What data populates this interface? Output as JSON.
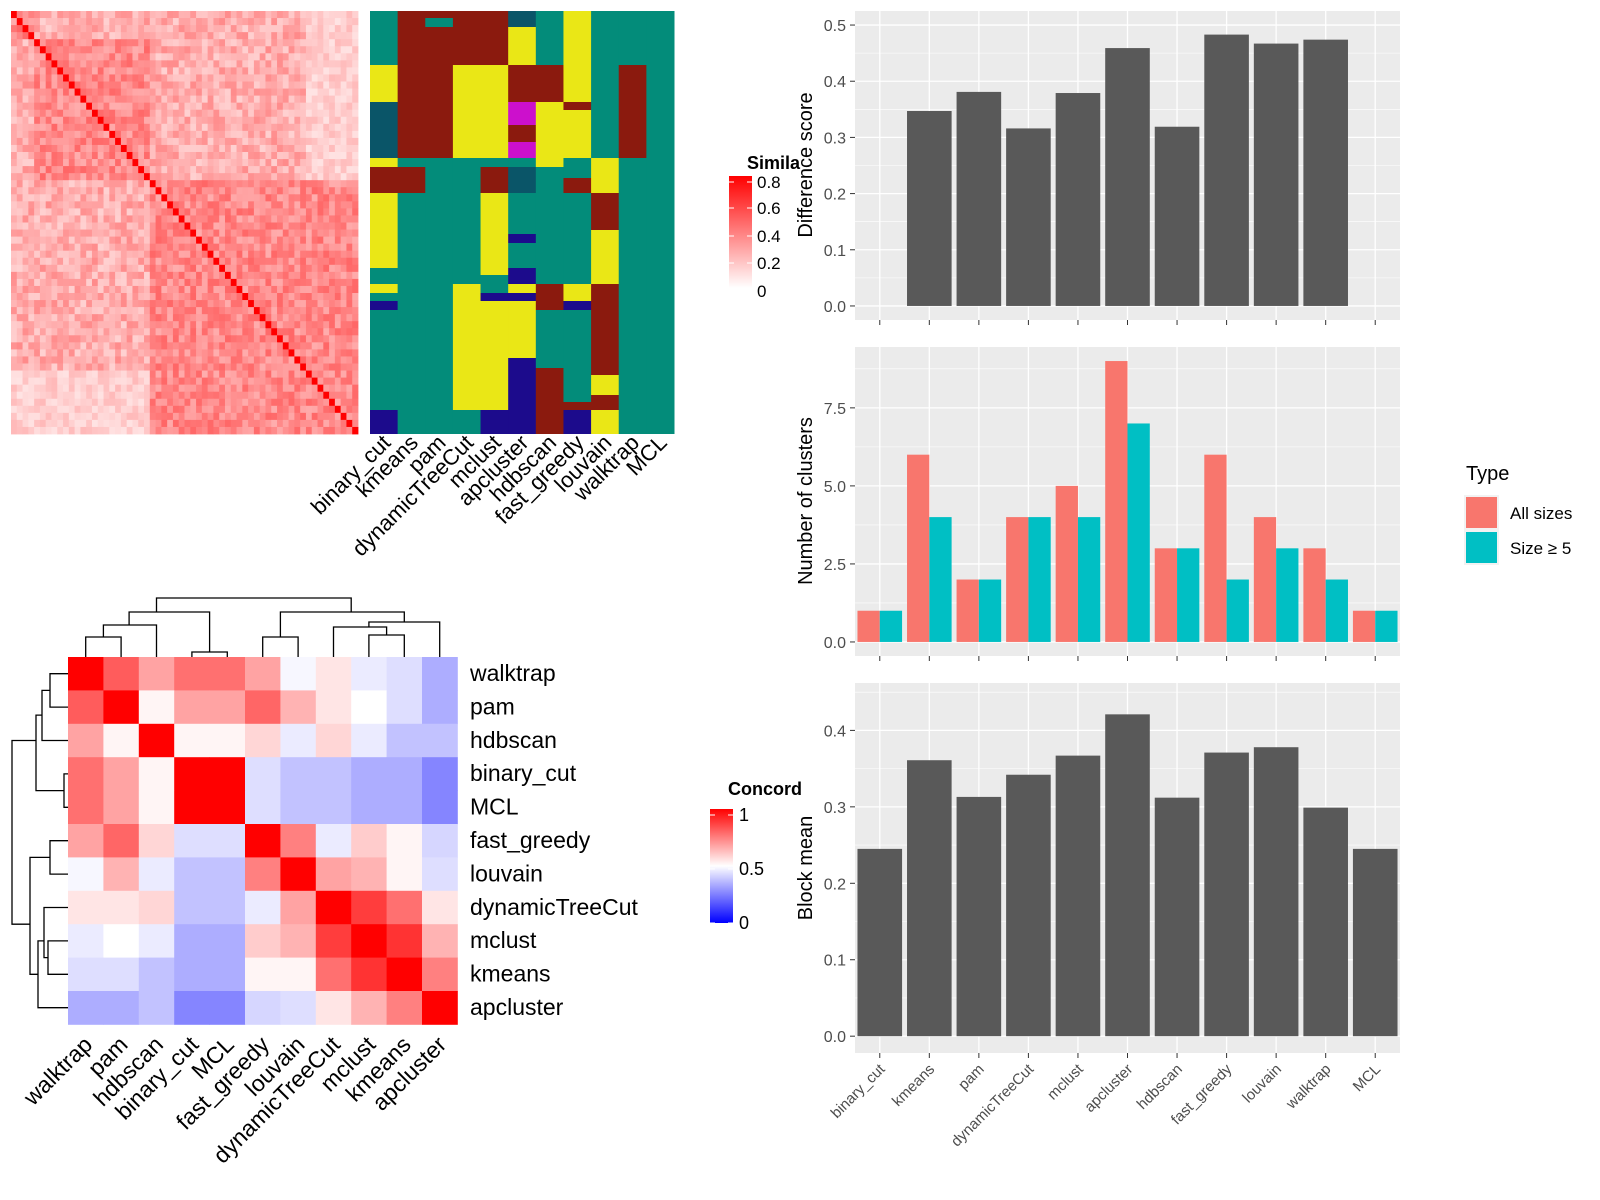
{
  "colors": {
    "panel_bg": "#EBEBEB",
    "grid": "#FFFFFF",
    "bar_gray": "#595959",
    "all_sizes": "#F8766D",
    "size_ge5": "#00BFC4",
    "sim_high": "#FF0000",
    "sim_low": "#FFFFFF",
    "conc_high": "#FF0000",
    "conc_mid": "#FFFFFF",
    "conc_low": "#0000FF",
    "class_colors": [
      "#038C7A",
      "#8B1A0E",
      "#EAE716",
      "#0A5568",
      "#1C0B8C",
      "#CC10CC"
    ]
  },
  "methods": [
    "binary_cut",
    "kmeans",
    "pam",
    "dynamicTreeCut",
    "mclust",
    "apcluster",
    "hdbscan",
    "fast_greedy",
    "louvain",
    "walktrap",
    "MCL"
  ],
  "similarity_heatmap": {
    "legend_title": "Simila",
    "legend_ticks": [
      "0.8",
      "0.6",
      "0.4",
      "0.2",
      "0"
    ],
    "method_labels": [
      "binary_cut",
      "kmeans",
      "pam",
      "dynamicTreeCut",
      "mclust",
      "apcluster",
      "hdbscan",
      "fast_greedy",
      "louvain",
      "walktrap",
      "MCL"
    ]
  },
  "concordance_heatmap": {
    "legend_title": "Concord",
    "legend_ticks": [
      "1",
      "0.5",
      "0"
    ],
    "row_labels": [
      "walktrap",
      "pam",
      "hdbscan",
      "binary_cut",
      "MCL",
      "fast_greedy",
      "louvain",
      "dynamicTreeCut",
      "mclust",
      "kmeans",
      "apcluster"
    ],
    "col_labels": [
      "walktrap",
      "pam",
      "hdbscan",
      "binary_cut",
      "MCL",
      "fast_greedy",
      "louvain",
      "dynamicTreeCut",
      "mclust",
      "kmeans",
      "apcluster"
    ],
    "matrix": [
      [
        1.0,
        0.82,
        0.68,
        0.78,
        0.78,
        0.68,
        0.48,
        0.55,
        0.45,
        0.42,
        0.3
      ],
      [
        0.82,
        1.0,
        0.52,
        0.68,
        0.68,
        0.8,
        0.65,
        0.55,
        0.5,
        0.42,
        0.3
      ],
      [
        0.68,
        0.52,
        1.0,
        0.52,
        0.52,
        0.58,
        0.45,
        0.58,
        0.45,
        0.35,
        0.35
      ],
      [
        0.78,
        0.68,
        0.52,
        1.0,
        1.0,
        0.42,
        0.35,
        0.35,
        0.3,
        0.3,
        0.2
      ],
      [
        0.78,
        0.68,
        0.52,
        1.0,
        1.0,
        0.42,
        0.35,
        0.35,
        0.3,
        0.3,
        0.2
      ],
      [
        0.68,
        0.8,
        0.58,
        0.42,
        0.42,
        1.0,
        0.75,
        0.45,
        0.6,
        0.52,
        0.4
      ],
      [
        0.48,
        0.65,
        0.45,
        0.35,
        0.35,
        0.75,
        1.0,
        0.68,
        0.65,
        0.52,
        0.42
      ],
      [
        0.55,
        0.55,
        0.58,
        0.35,
        0.35,
        0.45,
        0.68,
        1.0,
        0.88,
        0.78,
        0.55
      ],
      [
        0.45,
        0.5,
        0.45,
        0.3,
        0.3,
        0.6,
        0.65,
        0.88,
        1.0,
        0.9,
        0.65
      ],
      [
        0.42,
        0.42,
        0.35,
        0.3,
        0.3,
        0.52,
        0.52,
        0.78,
        0.9,
        1.0,
        0.75
      ],
      [
        0.3,
        0.3,
        0.35,
        0.2,
        0.2,
        0.4,
        0.42,
        0.55,
        0.65,
        0.75,
        1.0
      ]
    ]
  },
  "chart_data": [
    {
      "type": "bar",
      "categories": [
        "binary_cut",
        "kmeans",
        "pam",
        "dynamicTreeCut",
        "mclust",
        "apcluster",
        "hdbscan",
        "fast_greedy",
        "louvain",
        "walktrap",
        "MCL"
      ],
      "values": [
        0,
        0.347,
        0.381,
        0.316,
        0.379,
        0.459,
        0.319,
        0.483,
        0.467,
        0.474,
        0
      ],
      "ylabel": "Difference score",
      "ylim": [
        0,
        0.5
      ],
      "yticks": [
        "0.0",
        "0.1",
        "0.2",
        "0.3",
        "0.4",
        "0.5"
      ],
      "grid": true
    },
    {
      "type": "bar",
      "categories": [
        "binary_cut",
        "kmeans",
        "pam",
        "dynamicTreeCut",
        "mclust",
        "apcluster",
        "hdbscan",
        "fast_greedy",
        "louvain",
        "walktrap",
        "MCL"
      ],
      "series": [
        {
          "name": "All sizes",
          "values": [
            1,
            6,
            2,
            4,
            5,
            9,
            3,
            6,
            4,
            3,
            1
          ]
        },
        {
          "name": "Size ≥ 5",
          "values": [
            1,
            4,
            2,
            4,
            4,
            7,
            3,
            2,
            3,
            2,
            1
          ]
        }
      ],
      "ylabel": "Number of clusters",
      "ylim": [
        0,
        9
      ],
      "yticks": [
        "0.0",
        "2.5",
        "5.0",
        "7.5"
      ],
      "legend_title": "Type",
      "legend_position": "right",
      "grid": true
    },
    {
      "type": "bar",
      "categories": [
        "binary_cut",
        "kmeans",
        "pam",
        "dynamicTreeCut",
        "mclust",
        "apcluster",
        "hdbscan",
        "fast_greedy",
        "louvain",
        "walktrap",
        "MCL"
      ],
      "values": [
        0.245,
        0.361,
        0.313,
        0.342,
        0.367,
        0.421,
        0.312,
        0.371,
        0.378,
        0.299,
        0.245
      ],
      "ylabel": "Block mean",
      "ylim": [
        0,
        0.44
      ],
      "yticks": [
        "0.0",
        "0.1",
        "0.2",
        "0.3",
        "0.4"
      ],
      "grid": true
    }
  ]
}
